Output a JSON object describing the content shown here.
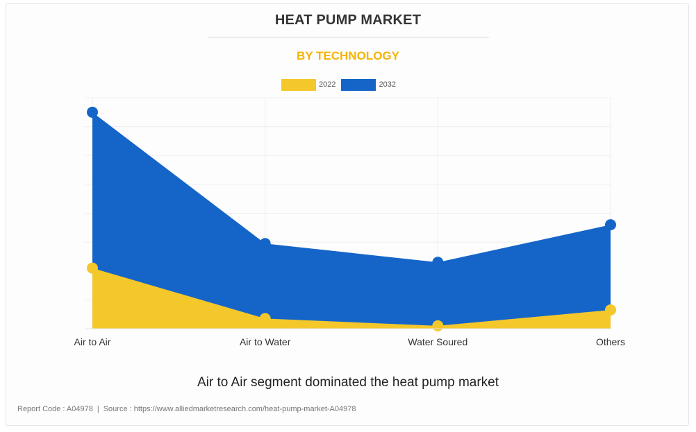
{
  "header": {
    "title": "HEAT PUMP MARKET",
    "subtitle": "BY TECHNOLOGY"
  },
  "colors": {
    "series_2022": "#f4c72b",
    "series_2032": "#1565c8",
    "subtitle": "#f5b400",
    "grid": "#eeeeee"
  },
  "chart_data": {
    "type": "area",
    "title": "HEAT PUMP MARKET",
    "subtitle": "BY TECHNOLOGY",
    "categories": [
      "Air to Air",
      "Air to Water",
      "Water Soured",
      "Others"
    ],
    "series": [
      {
        "name": "2032",
        "values": [
          75,
          29.5,
          23,
          36
        ]
      },
      {
        "name": "2022",
        "values": [
          21,
          3.5,
          1,
          6.5
        ]
      }
    ],
    "ylim": [
      0,
      80
    ],
    "grid": true,
    "legend_position": "top-center",
    "xlabel": "",
    "ylabel": ""
  },
  "legend": {
    "items": [
      {
        "label": "2022",
        "color": "#f4c72b"
      },
      {
        "label": "2032",
        "color": "#1565c8"
      }
    ]
  },
  "caption": "Air to Air segment dominated the heat pump market",
  "footer": {
    "report_code": "Report Code : A04978",
    "separator": "|",
    "source": "Source : https://www.alliedmarketresearch.com/heat-pump-market-A04978"
  }
}
